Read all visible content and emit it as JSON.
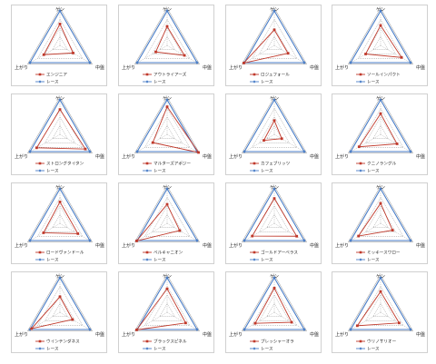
{
  "axis_labels": [
    "ゲン",
    "中盤",
    "上がり"
  ],
  "colors": {
    "horse": "#c0392b",
    "race": "#4a7ec8",
    "grid": "#8c8c8c"
  },
  "chart_data": [
    {
      "type": "radar",
      "title": "",
      "categories": [
        "ゲン",
        "中盤",
        "上がり"
      ],
      "series": [
        {
          "name": "エンジニア",
          "values": [
            0.62,
            0.44,
            0.54
          ]
        },
        {
          "name": "レース",
          "values": [
            1.0,
            1.0,
            1.0
          ]
        }
      ]
    },
    {
      "type": "radar",
      "title": "",
      "categories": [
        "ゲン",
        "中盤",
        "上がり"
      ],
      "series": [
        {
          "name": "アウトライアーズ",
          "values": [
            0.55,
            0.58,
            0.38
          ]
        },
        {
          "name": "レース",
          "values": [
            1.0,
            1.0,
            1.0
          ]
        }
      ]
    },
    {
      "type": "radar",
      "title": "",
      "categories": [
        "ゲン",
        "中盤",
        "上がり"
      ],
      "series": [
        {
          "name": "ロジュフォール",
          "values": [
            0.45,
            0.46,
            1.02
          ]
        },
        {
          "name": "レース",
          "values": [
            1.0,
            1.0,
            1.0
          ]
        }
      ]
    },
    {
      "type": "radar",
      "title": "",
      "categories": [
        "ゲン",
        "中盤",
        "上がり"
      ],
      "series": [
        {
          "name": "ソールインパクト",
          "values": [
            0.58,
            0.7,
            0.5
          ]
        },
        {
          "name": "レース",
          "values": [
            1.0,
            1.0,
            1.0
          ]
        }
      ]
    },
    {
      "type": "radar",
      "title": "",
      "categories": [
        "ゲン",
        "中盤",
        "上がり"
      ],
      "series": [
        {
          "name": "ストロングタイタン",
          "values": [
            0.72,
            0.85,
            0.78
          ]
        },
        {
          "name": "レース",
          "values": [
            1.0,
            1.0,
            1.0
          ]
        }
      ]
    },
    {
      "type": "radar",
      "title": "",
      "categories": [
        "ゲン",
        "中盤",
        "上がり"
      ],
      "series": [
        {
          "name": "マルターズアポジー",
          "values": [
            0.8,
            1.05,
            0.48
          ]
        },
        {
          "name": "レース",
          "values": [
            1.0,
            1.0,
            1.0
          ]
        }
      ]
    },
    {
      "type": "radar",
      "title": "",
      "categories": [
        "ゲン",
        "中盤",
        "上がり"
      ],
      "series": [
        {
          "name": "カフェブリッツ",
          "values": [
            0.4,
            0.25,
            0.35
          ]
        },
        {
          "name": "レース",
          "values": [
            1.0,
            1.0,
            1.0
          ]
        }
      ]
    },
    {
      "type": "radar",
      "title": "",
      "categories": [
        "ゲン",
        "中盤",
        "上がり"
      ],
      "series": [
        {
          "name": "クニノラングル",
          "values": [
            0.6,
            0.55,
            0.72
          ]
        },
        {
          "name": "レース",
          "values": [
            1.0,
            1.0,
            1.0
          ]
        }
      ]
    },
    {
      "type": "radar",
      "title": "",
      "categories": [
        "ゲン",
        "中盤",
        "上がり"
      ],
      "series": [
        {
          "name": "ロードヴァンドール",
          "values": [
            0.62,
            0.6,
            0.55
          ]
        },
        {
          "name": "レース",
          "values": [
            1.0,
            1.0,
            1.0
          ]
        }
      ]
    },
    {
      "type": "radar",
      "title": "",
      "categories": [
        "ゲン",
        "中盤",
        "上がり"
      ],
      "series": [
        {
          "name": "ベルキャニオン",
          "values": [
            0.55,
            0.42,
            1.02
          ]
        },
        {
          "name": "レース",
          "values": [
            1.0,
            1.0,
            1.0
          ]
        }
      ]
    },
    {
      "type": "radar",
      "title": "",
      "categories": [
        "ゲン",
        "中盤",
        "上がり"
      ],
      "series": [
        {
          "name": "ゴールドアーベラス",
          "values": [
            0.72,
            0.75,
            0.74
          ]
        },
        {
          "name": "レース",
          "values": [
            1.0,
            1.0,
            1.0
          ]
        }
      ]
    },
    {
      "type": "radar",
      "title": "",
      "categories": [
        "ゲン",
        "中盤",
        "上がり"
      ],
      "series": [
        {
          "name": "ミッキースワロー",
          "values": [
            0.58,
            0.4,
            0.74
          ]
        },
        {
          "name": "レース",
          "values": [
            1.0,
            1.0,
            1.0
          ]
        }
      ]
    },
    {
      "type": "radar",
      "title": "",
      "categories": [
        "ゲン",
        "中盤",
        "上がり"
      ],
      "series": [
        {
          "name": "ウインテンダネス",
          "values": [
            0.45,
            0.42,
            0.95
          ]
        },
        {
          "name": "レース",
          "values": [
            1.0,
            1.0,
            1.0
          ]
        }
      ]
    },
    {
      "type": "radar",
      "title": "",
      "categories": [
        "ゲン",
        "中盤",
        "上がり"
      ],
      "series": [
        {
          "name": "ブラックスピネル",
          "values": [
            0.68,
            0.62,
            1.02
          ]
        },
        {
          "name": "レース",
          "values": [
            1.0,
            1.0,
            1.0
          ]
        }
      ]
    },
    {
      "type": "radar",
      "title": "",
      "categories": [
        "ゲン",
        "中盤",
        "上がり"
      ],
      "series": [
        {
          "name": "プレッシャーオラ",
          "values": [
            0.7,
            0.58,
            0.64
          ]
        },
        {
          "name": "レース",
          "values": [
            1.0,
            1.0,
            1.0
          ]
        }
      ]
    },
    {
      "type": "radar",
      "title": "",
      "categories": [
        "ゲン",
        "中盤",
        "上がり"
      ],
      "series": [
        {
          "name": "ウリノサリオー",
          "values": [
            0.6,
            0.62,
            0.78
          ]
        },
        {
          "name": "レース",
          "values": [
            1.0,
            1.0,
            1.0
          ]
        }
      ]
    }
  ]
}
